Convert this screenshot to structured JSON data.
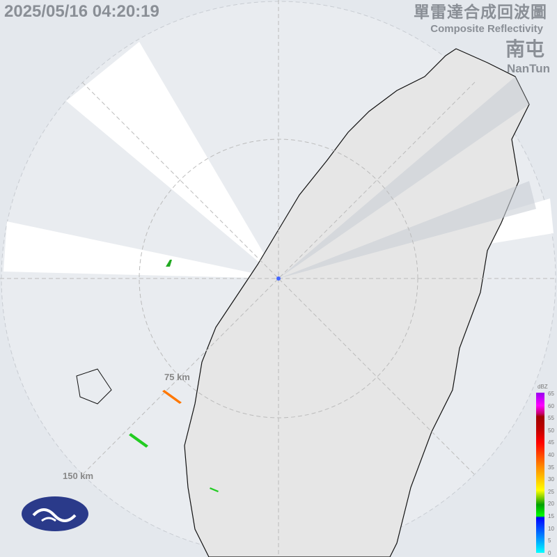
{
  "header": {
    "timestamp": "2025/05/16 04:20:19",
    "title_zh": "單雷達合成回波圖",
    "title_en": "Composite Reflectivity",
    "station_zh": "南屯",
    "station_en": "NanTun"
  },
  "range_labels": [
    "75 km",
    "150 km"
  ],
  "legend": {
    "unit": "dBZ",
    "ticks": [
      "65",
      "60",
      "55",
      "50",
      "45",
      "40",
      "35",
      "30",
      "25",
      "20",
      "15",
      "10",
      "5",
      "0"
    ]
  },
  "colors": {
    "background": "#e4e8ed",
    "land": "#e6e6e6",
    "clear_sector": "#ffffff"
  },
  "logo": "CWA logo"
}
